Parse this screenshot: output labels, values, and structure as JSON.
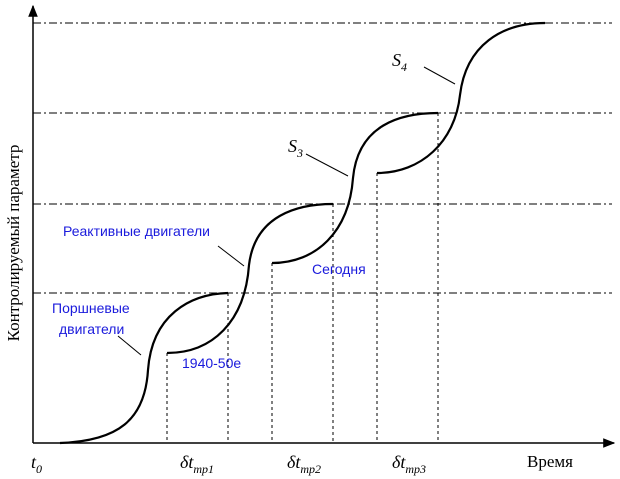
{
  "axes": {
    "y_label": "Контролируемый параметр",
    "x_label": "Время",
    "origin": {
      "symbol": "t",
      "subscript": "0"
    }
  },
  "intervals": [
    {
      "symbol": "δt",
      "subscript": "тр1"
    },
    {
      "symbol": "δt",
      "subscript": "тр2"
    },
    {
      "symbol": "δt",
      "subscript": "тр3"
    }
  ],
  "curve_labels": [
    {
      "symbol": "S",
      "subscript": "3"
    },
    {
      "symbol": "S",
      "subscript": "4"
    }
  ],
  "annotations": {
    "piston": [
      "Поршневые",
      "двигатели"
    ],
    "jet": "Реактивные двигатели",
    "era": "1940-50е",
    "today": "Сегодня"
  }
}
